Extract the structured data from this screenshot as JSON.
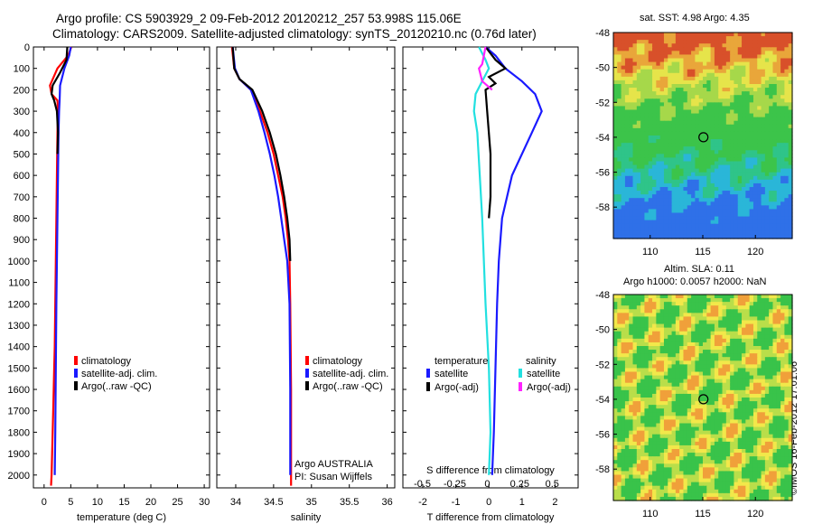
{
  "title": {
    "line1": "Argo profile: CS 5903929_2 09-Feb-2012 20120212_257 53.998S 115.06E",
    "line2": "Climatology: CARS2009. Satellite-adjusted climatology: synTS_20120210.nc (0.76d later)"
  },
  "maps": {
    "sst_title": "sat. SST: 4.98 Argo: 4.35",
    "sla_title1": "Altim. SLA: 0.11",
    "sla_title2": "Argo h1000: 0.0057 h2000: NaN",
    "credit": "©IMOS 16-Feb-2012 17:01:06",
    "lon_ticks": [
      "110",
      "115",
      "120"
    ],
    "lat_ticks": [
      "-48",
      "-50",
      "-52",
      "-54",
      "-56",
      "-58"
    ],
    "float_lon": 115.06,
    "float_lat": -53.998
  },
  "colors": {
    "climatology": "#ff0000",
    "satellite": "#1a1aff",
    "argo": "#000000",
    "sal_satellite": "#22e0e0",
    "sal_argo": "#ff22ff"
  },
  "depth_ticks": [
    "0",
    "100",
    "200",
    "300",
    "400",
    "500",
    "600",
    "700",
    "800",
    "900",
    "1000",
    "1100",
    "1200",
    "1300",
    "1400",
    "1500",
    "1600",
    "1700",
    "1800",
    "1900",
    "2000"
  ],
  "chart_data": [
    {
      "type": "line",
      "xlabel": "temperature (deg C)",
      "xlim": [
        -2,
        31
      ],
      "xticks": [
        "0",
        "5",
        "10",
        "15",
        "20",
        "25",
        "30"
      ],
      "ylim": [
        0,
        2060
      ],
      "legend": [
        "climatology",
        "satellite-adj. clim.",
        "Argo(..raw -QC)"
      ],
      "series": [
        {
          "name": "climatology",
          "color": "#ff0000",
          "x": [
            5.1,
            4.5,
            2.5,
            1.1,
            1.4,
            2.5,
            2.6,
            2.5,
            2.4,
            2.3,
            2.2,
            2.1,
            2.0,
            1.9,
            1.7,
            1.5,
            1.4,
            1.3
          ],
          "y": [
            0,
            40,
            100,
            180,
            220,
            250,
            300,
            400,
            600,
            800,
            1000,
            1200,
            1400,
            1500,
            1700,
            1900,
            2000,
            2050
          ]
        },
        {
          "name": "satellite-adj. clim.",
          "color": "#1a1aff",
          "x": [
            5.0,
            4.7,
            3.8,
            3.0,
            2.9,
            2.8,
            2.7,
            2.6,
            2.5,
            2.4,
            2.3,
            2.2,
            2.1,
            2.0
          ],
          "y": [
            0,
            40,
            100,
            180,
            250,
            300,
            400,
            600,
            800,
            1000,
            1200,
            1500,
            1800,
            2000
          ]
        },
        {
          "name": "Argo(..raw -QC)",
          "color": "#000000",
          "x": [
            4.35,
            4.2,
            3.0,
            1.6,
            1.4,
            1.9,
            2.4,
            2.6,
            2.5
          ],
          "y": [
            0,
            60,
            120,
            180,
            220,
            250,
            300,
            400,
            500
          ]
        }
      ]
    },
    {
      "type": "line",
      "xlabel": "salinity",
      "xlim": [
        33.75,
        36.1
      ],
      "xticks": [
        "34",
        "34.5",
        "35",
        "35.5",
        "36"
      ],
      "ylim": [
        0,
        2060
      ],
      "legend": [
        "climatology",
        "satellite-adj. clim.",
        "Argo(..raw -QC)"
      ],
      "annotation": [
        "Argo AUSTRALIA",
        "PI: Susan Wijffels"
      ],
      "series": [
        {
          "name": "climatology",
          "color": "#ff0000",
          "x": [
            33.95,
            33.98,
            34.05,
            34.2,
            34.32,
            34.42,
            34.5,
            34.56,
            34.62,
            34.66,
            34.69,
            34.71,
            34.72,
            34.73,
            34.73
          ],
          "y": [
            0,
            100,
            150,
            200,
            300,
            400,
            500,
            600,
            700,
            800,
            900,
            1000,
            1200,
            1600,
            2050
          ]
        },
        {
          "name": "satellite-adj. clim.",
          "color": "#1a1aff",
          "x": [
            33.96,
            33.99,
            34.05,
            34.2,
            34.3,
            34.38,
            34.45,
            34.51,
            34.56,
            34.6,
            34.64,
            34.68,
            34.71,
            34.72,
            34.72
          ],
          "y": [
            0,
            100,
            150,
            200,
            300,
            400,
            500,
            600,
            700,
            800,
            900,
            1000,
            1200,
            1600,
            2000
          ]
        },
        {
          "name": "Argo(..raw -QC)",
          "color": "#000000",
          "x": [
            33.96,
            33.98,
            34.05,
            34.22,
            34.35,
            34.45,
            34.53,
            34.59,
            34.64,
            34.68,
            34.71,
            34.72
          ],
          "y": [
            0,
            100,
            150,
            200,
            300,
            400,
            500,
            600,
            700,
            800,
            900,
            1000
          ]
        }
      ]
    },
    {
      "type": "line",
      "xlabel": "T difference from climatology",
      "xlabel_top": "S difference from climatology",
      "xlim": [
        -2.6,
        2.7
      ],
      "xticks": [
        "-2",
        "-1",
        "0",
        "1",
        "2"
      ],
      "xticks_top": [
        "-0.5",
        "-0.25",
        "0",
        "0.25",
        "0.5"
      ],
      "ylim": [
        0,
        2060
      ],
      "legend_headers": [
        "temperature",
        "salinity"
      ],
      "legend": [
        "satellite",
        "Argo(-adj)",
        "satellite",
        "Argo(-adj)"
      ],
      "series": [
        {
          "name": "satellite",
          "color": "#1a1aff",
          "x": [
            -0.1,
            0.2,
            0.5,
            1.0,
            1.4,
            1.6,
            1.3,
            0.7,
            0.4,
            0.3,
            0.25,
            0.2,
            0.15,
            0.1
          ],
          "y": [
            0,
            40,
            100,
            160,
            220,
            300,
            400,
            600,
            800,
            1000,
            1200,
            1500,
            1800,
            2000
          ]
        },
        {
          "name": "Argo(-adj)",
          "color": "#000000",
          "x": [
            -0.1,
            0.2,
            0.5,
            0.0,
            0.2,
            -0.1,
            -0.05,
            0.05,
            0.05,
            0.0
          ],
          "y": [
            0,
            60,
            100,
            140,
            170,
            200,
            300,
            500,
            700,
            800
          ]
        },
        {
          "name": "satellite",
          "color": "#22e0e0",
          "x": [
            -0.3,
            -0.1,
            0.0,
            -0.2,
            -0.4,
            -0.45,
            -0.35,
            -0.2,
            -0.1,
            0.0,
            0.05,
            0.0
          ],
          "y": [
            0,
            60,
            100,
            160,
            220,
            300,
            400,
            800,
            1200,
            1500,
            1800,
            2000
          ]
        },
        {
          "name": "Argo(-adj)",
          "color": "#ff22ff",
          "x": [
            -0.1,
            -0.2,
            -0.3,
            -0.2,
            0.1
          ],
          "y": [
            0,
            80,
            100,
            160,
            200
          ]
        }
      ]
    }
  ]
}
